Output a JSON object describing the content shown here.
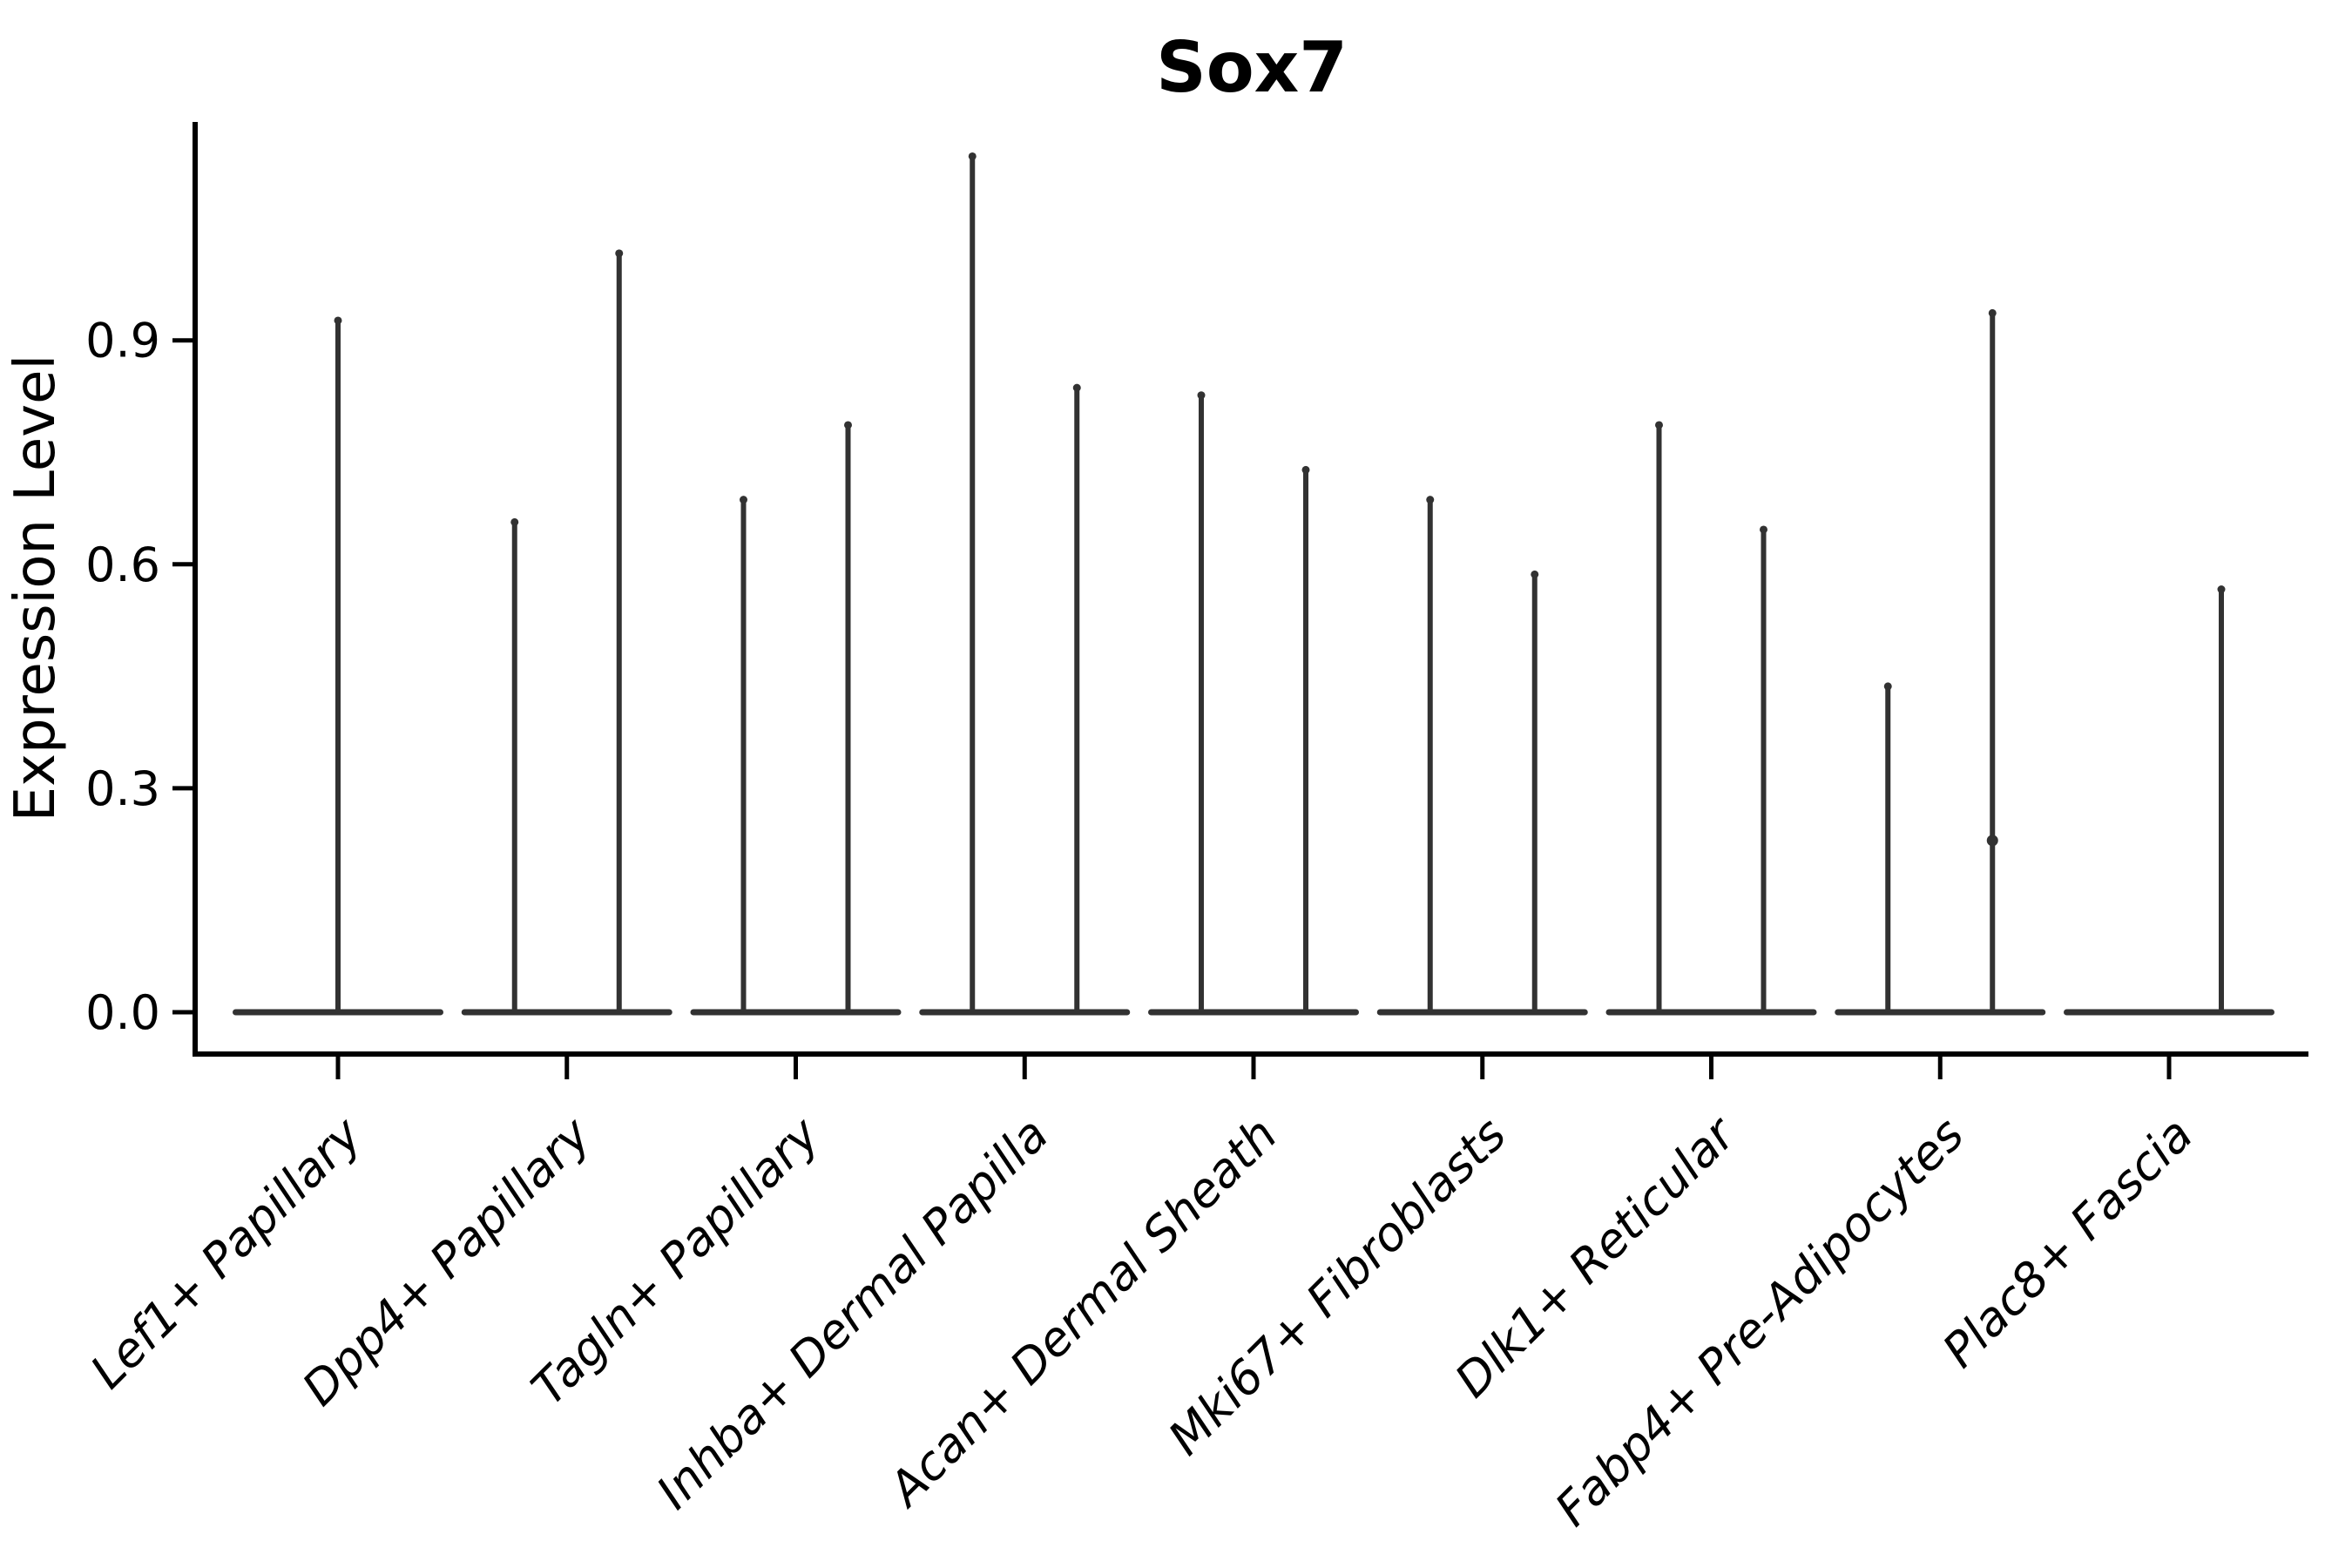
{
  "chart_data": {
    "type": "violin",
    "title": "Sox7",
    "ylabel": "Expression Level",
    "xlabel": "",
    "ylim": [
      0,
      1.2
    ],
    "grid": false,
    "legend": "none",
    "yticks": [
      {
        "label": "0.0",
        "value": 0.0
      },
      {
        "label": "0.3",
        "value": 0.3
      },
      {
        "label": "0.6",
        "value": 0.6
      },
      {
        "label": "0.9",
        "value": 0.9
      }
    ],
    "categories": [
      "Lef1+ Papillary",
      "Dpp4+ Papillary",
      "Tagln+ Papillary",
      "Inhba+ Dermal Papilla",
      "Acan+ Dermal Sheath",
      "Mki67+ Fibroblasts",
      "Dlk1+ Reticular",
      "Fabp4+ Pre-Adipocytes",
      "Plac8+ Fascia"
    ],
    "violins": [
      {
        "category": "Lef1+ Papillary",
        "baseline_value": 0.0,
        "spikes": [
          {
            "pos": "center",
            "max": 0.93
          }
        ]
      },
      {
        "category": "Dpp4+ Papillary",
        "baseline_value": 0.0,
        "spikes": [
          {
            "pos": "left",
            "max": 0.66
          },
          {
            "pos": "right",
            "max": 1.02
          }
        ]
      },
      {
        "category": "Tagln+ Papillary",
        "baseline_value": 0.0,
        "spikes": [
          {
            "pos": "left",
            "max": 0.69
          },
          {
            "pos": "right",
            "max": 0.79
          }
        ]
      },
      {
        "category": "Inhba+ Dermal Papilla",
        "baseline_value": 0.0,
        "spikes": [
          {
            "pos": "left",
            "max": 1.15
          },
          {
            "pos": "right",
            "max": 0.84
          }
        ]
      },
      {
        "category": "Acan+ Dermal Sheath",
        "baseline_value": 0.0,
        "spikes": [
          {
            "pos": "left",
            "max": 0.83
          },
          {
            "pos": "right",
            "max": 0.73
          }
        ]
      },
      {
        "category": "Mki67+ Fibroblasts",
        "baseline_value": 0.0,
        "spikes": [
          {
            "pos": "left",
            "max": 0.69
          },
          {
            "pos": "right",
            "max": 0.59
          }
        ]
      },
      {
        "category": "Dlk1+ Reticular",
        "baseline_value": 0.0,
        "spikes": [
          {
            "pos": "left",
            "max": 0.79
          },
          {
            "pos": "right",
            "max": 0.65
          }
        ]
      },
      {
        "category": "Fabp4+ Pre-Adipocytes",
        "baseline_value": 0.0,
        "spikes": [
          {
            "pos": "left",
            "max": 0.44
          },
          {
            "pos": "right",
            "max": 0.94
          }
        ]
      },
      {
        "category": "Plac8+ Fascia",
        "baseline_value": 0.0,
        "spikes": [
          {
            "pos": "right",
            "max": 0.57
          }
        ]
      }
    ],
    "jitter_points": [
      {
        "category": "Fabp4+ Pre-Adipocytes",
        "pos": "right",
        "value": 0.23
      }
    ],
    "colors": {
      "violin": "#323232",
      "axis": "#000000",
      "text": "#000000",
      "background": "#ffffff"
    }
  }
}
